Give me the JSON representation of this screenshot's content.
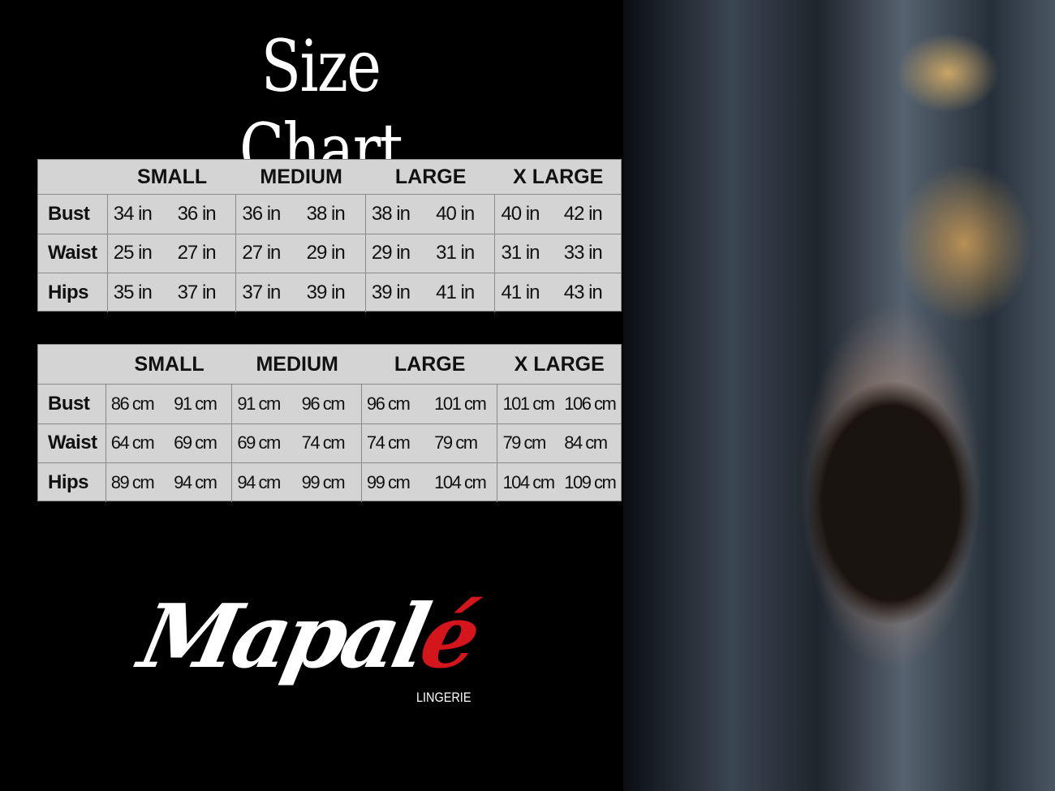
{
  "title": "Size Chart",
  "sizes": [
    "SMALL",
    "MEDIUM",
    "LARGE",
    "X LARGE"
  ],
  "inches_table": {
    "rows": [
      {
        "label": "Bust",
        "values": [
          "34 in",
          "36 in",
          "36 in",
          "38 in",
          "38 in",
          "40 in",
          "40 in",
          "42 in"
        ]
      },
      {
        "label": "Waist",
        "values": [
          "25 in",
          "27 in",
          "27 in",
          "29 in",
          "29 in",
          "31 in",
          "31 in",
          "33 in"
        ]
      },
      {
        "label": "Hips",
        "values": [
          "35 in",
          "37 in",
          "37 in",
          "39 in",
          "39 in",
          "41 in",
          "41 in",
          "43 in"
        ]
      }
    ]
  },
  "cm_table": {
    "rows": [
      {
        "label": "Bust",
        "values": [
          "86 cm",
          "91 cm",
          "91 cm",
          "96 cm",
          "96 cm",
          "101 cm",
          "101 cm",
          "106 cm"
        ]
      },
      {
        "label": "Waist",
        "values": [
          "64 cm",
          "69 cm",
          "69 cm",
          "74 cm",
          "74 cm",
          "79  cm",
          "79 cm",
          "84 cm"
        ]
      },
      {
        "label": "Hips",
        "values": [
          "89 cm",
          "94 cm",
          "94 cm",
          "99 cm",
          "99 cm",
          "104 cm",
          "104 cm",
          "109 cm"
        ]
      }
    ]
  },
  "logo": {
    "name": "Mapal",
    "accent": "é",
    "subtitle": "LINGERIE",
    "accent_color": "#d4151b"
  },
  "colors": {
    "background": "#000000",
    "table_fill": "#d4d4d4",
    "table_border": "#8a8a8a"
  }
}
